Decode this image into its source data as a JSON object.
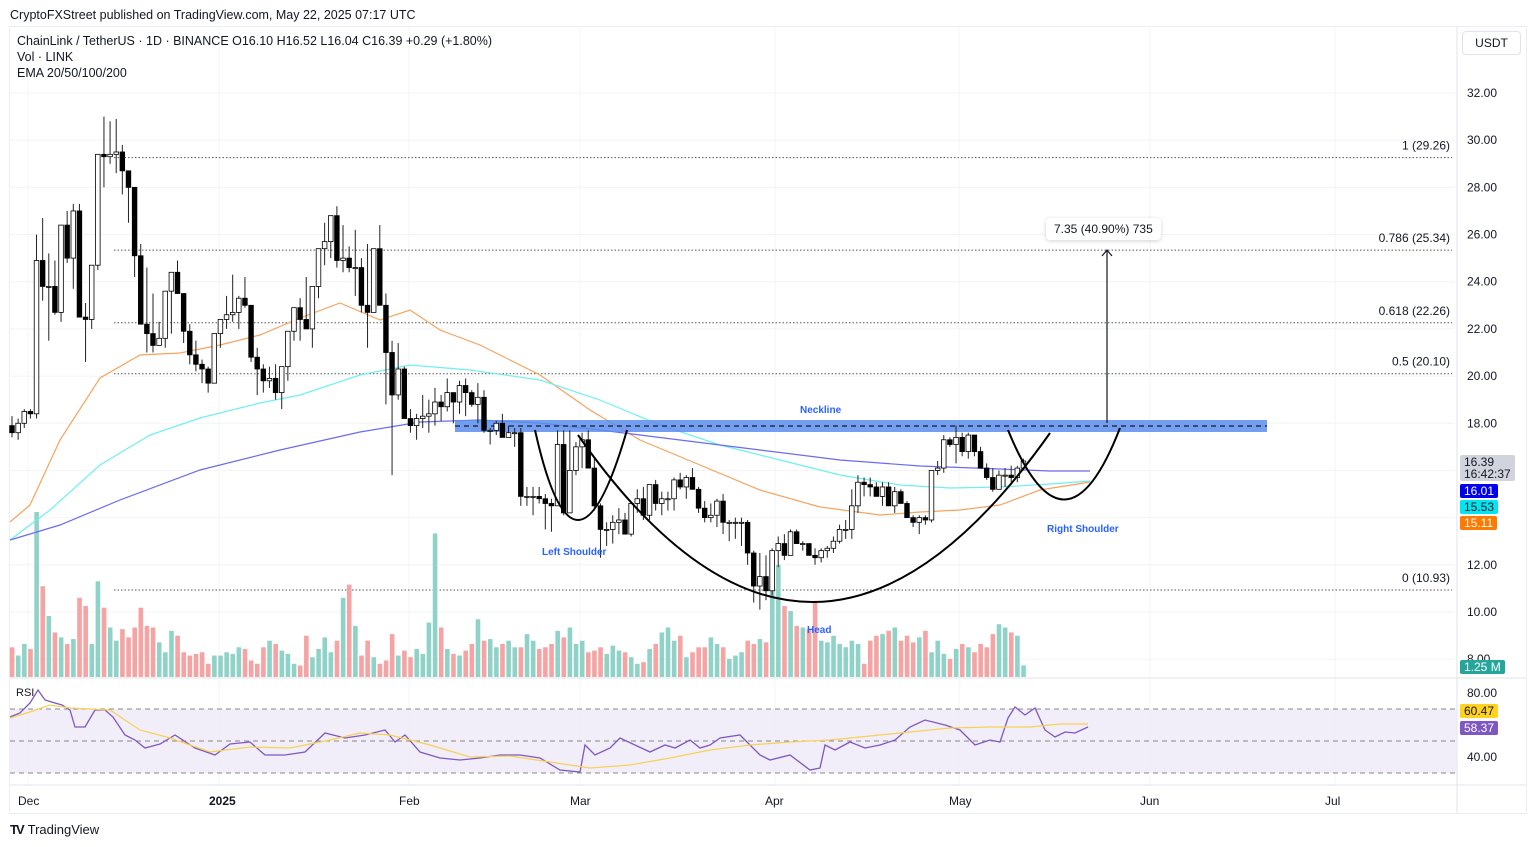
{
  "publisher_line": "CryptoFXStreet published on TradingView.com, May 22, 2025 07:17 UTC",
  "legend": {
    "symbol_line": "ChainLink / TetherUS · 1D · BINANCE  O16.10  H16.52  L16.04  C16.39  +0.29 (+1.80%)",
    "volume_line": "Vol · LINK",
    "ema_line": "EMA 20/50/100/200"
  },
  "currency_unit": "USDT",
  "price_axis_ticks": [
    "32.00",
    "30.00",
    "28.00",
    "26.00",
    "24.00",
    "22.00",
    "20.00",
    "18.00",
    "12.00",
    "10.00",
    "8.00"
  ],
  "rsi_axis_ticks": [
    "80.00",
    "40.00"
  ],
  "time_axis_ticks": [
    "Dec",
    "2025",
    "Feb",
    "Mar",
    "Apr",
    "May",
    "Jun",
    "Jul"
  ],
  "price_badges": {
    "last_price": "16.39",
    "countdown": "16:42:37",
    "ema_blue": "16.01",
    "ema_cyan": "15.53",
    "ema_orange": "15.11",
    "volume": "1.25 M",
    "rsi_ma": "60.47",
    "rsi": "58.37"
  },
  "fib_levels": [
    {
      "label": "1 (29.26)",
      "price": 29.26
    },
    {
      "label": "0.786 (25.34)",
      "price": 25.34
    },
    {
      "label": "0.618 (22.26)",
      "price": 22.26
    },
    {
      "label": "0.5 (20.10)",
      "price": 20.1
    },
    {
      "label": "0 (10.93)",
      "price": 10.93
    }
  ],
  "measure_tooltip": "7.35 (40.90%) 735",
  "annotations": {
    "neckline": "Neckline",
    "left_shoulder": "Left Shoulder",
    "head": "Head",
    "right_shoulder": "Right Shoulder",
    "pane_rsi": "RSI"
  },
  "footer_brand": "TradingView",
  "colors": {
    "up_volume": "#8fd3c8",
    "down_volume": "#f5a3a3",
    "ema20": "#f7a35c",
    "ema50": "#6ef0f0",
    "ema100": "#6b6bf0",
    "ema200": "#3a3af5",
    "neckline_band": "#5b8def",
    "rsi_line": "#7e57c2",
    "rsi_ma": "#f7d154",
    "annotation_text": "#2962ff"
  },
  "chart_data": {
    "type": "candlestick",
    "title": "ChainLink / TetherUS · 1D · BINANCE",
    "xlabel": "",
    "ylabel": "USDT",
    "ylim": [
      7.5,
      33.5
    ],
    "x_ticks": [
      "Dec",
      "2025",
      "Feb",
      "Mar",
      "Apr",
      "May",
      "Jun",
      "Jul"
    ],
    "last_ohlc": {
      "open": 16.1,
      "high": 16.52,
      "low": 16.04,
      "close": 16.39,
      "change": 0.29,
      "change_pct": 1.8
    },
    "ema_last": {
      "ema_a": 16.01,
      "ema_b": 15.53,
      "ema_c": 15.11
    },
    "pattern": "Inverse head and shoulders",
    "neckline_price": 17.85,
    "target_move": {
      "points": 7.35,
      "pct": 40.9,
      "ticks": 735,
      "target_price": 25.34
    },
    "fibonacci": {
      "1": 29.26,
      "0.786": 25.34,
      "0.618": 22.26,
      "0.5": 20.1,
      "0": 10.93
    },
    "candles_ohlc": [
      [
        17.9,
        18.3,
        17.4,
        17.6
      ],
      [
        17.6,
        18.2,
        17.3,
        18.0
      ],
      [
        18.0,
        18.6,
        17.8,
        18.5
      ],
      [
        18.5,
        18.6,
        18.2,
        18.4
      ],
      [
        18.4,
        26.0,
        18.2,
        24.9
      ],
      [
        24.9,
        26.7,
        23.2,
        23.8
      ],
      [
        23.8,
        25.2,
        21.5,
        23.8
      ],
      [
        23.8,
        24.9,
        22.6,
        22.7
      ],
      [
        22.7,
        26.2,
        22.3,
        26.4
      ],
      [
        26.4,
        27.0,
        24.8,
        25.0
      ],
      [
        25.0,
        27.3,
        23.7,
        27.0
      ],
      [
        27.0,
        27.3,
        22.6,
        22.5
      ],
      [
        22.5,
        23.1,
        20.6,
        22.4
      ],
      [
        22.4,
        24.3,
        22.0,
        24.7
      ],
      [
        24.7,
        26.2,
        24.5,
        29.4
      ],
      [
        29.4,
        31.0,
        28.0,
        29.3
      ],
      [
        29.3,
        30.8,
        29.0,
        29.4
      ],
      [
        29.4,
        30.9,
        28.6,
        29.5
      ],
      [
        29.5,
        29.8,
        27.7,
        28.7
      ],
      [
        28.7,
        27.8,
        26.5,
        28.0
      ],
      [
        28.0,
        27.2,
        24.2,
        25.1
      ],
      [
        25.1,
        25.6,
        23.0,
        22.2
      ],
      [
        22.2,
        24.6,
        21.0,
        21.8
      ],
      [
        21.8,
        23.5,
        21.0,
        21.3
      ],
      [
        21.3,
        22.3,
        21.8,
        21.6
      ],
      [
        21.6,
        23.2,
        21.2,
        23.6
      ],
      [
        23.6,
        24.4,
        21.8,
        24.4
      ],
      [
        24.4,
        24.9,
        23.5,
        23.5
      ],
      [
        23.5,
        23.5,
        21.4,
        21.9
      ],
      [
        21.9,
        22.2,
        20.5,
        20.9
      ],
      [
        20.9,
        21.5,
        20.2,
        20.5
      ],
      [
        20.5,
        20.7,
        19.7,
        20.3
      ],
      [
        20.3,
        20.4,
        19.3,
        19.7
      ],
      [
        19.7,
        21.8,
        20.1,
        21.8
      ],
      [
        21.8,
        22.3,
        21.2,
        22.4
      ],
      [
        22.4,
        23.4,
        22.0,
        22.6
      ],
      [
        22.6,
        24.3,
        22.3,
        22.7
      ],
      [
        22.7,
        23.4,
        22.0,
        23.3
      ],
      [
        23.3,
        24.2,
        22.9,
        23.0
      ],
      [
        23.0,
        23.0,
        20.6,
        20.8
      ],
      [
        20.8,
        21.2,
        19.2,
        20.3
      ],
      [
        20.3,
        20.5,
        19.3,
        19.8
      ],
      [
        19.8,
        20.4,
        19.5,
        19.9
      ],
      [
        19.9,
        20.5,
        19.0,
        19.3
      ],
      [
        19.3,
        20.0,
        18.6,
        20.4
      ],
      [
        20.4,
        21.5,
        19.8,
        21.9
      ],
      [
        21.9,
        22.9,
        21.5,
        22.9
      ],
      [
        22.9,
        23.3,
        21.5,
        22.4
      ],
      [
        22.4,
        24.2,
        22.0,
        22.0
      ],
      [
        22.0,
        23.6,
        21.2,
        23.8
      ],
      [
        23.8,
        24.8,
        23.3,
        25.4
      ],
      [
        25.4,
        26.5,
        24.7,
        25.7
      ],
      [
        25.7,
        26.8,
        25.0,
        26.8
      ],
      [
        26.8,
        27.2,
        24.6,
        24.9
      ],
      [
        24.9,
        26.4,
        24.4,
        25.0
      ],
      [
        25.0,
        25.5,
        24.4,
        24.6
      ],
      [
        24.6,
        26.2,
        23.4,
        24.6
      ],
      [
        24.6,
        25.0,
        22.7,
        23.0
      ],
      [
        23.0,
        25.6,
        21.2,
        22.7
      ],
      [
        22.7,
        25.2,
        23.7,
        25.4
      ],
      [
        25.4,
        26.4,
        24.9,
        23.0
      ],
      [
        23.0,
        23.5,
        18.8,
        21.0
      ],
      [
        21.0,
        21.5,
        15.8,
        19.2
      ],
      [
        19.2,
        21.4,
        19.0,
        20.3
      ],
      [
        20.3,
        20.4,
        18.3,
        18.2
      ],
      [
        18.2,
        18.6,
        17.6,
        17.9
      ],
      [
        17.9,
        18.4,
        17.3,
        18.2
      ],
      [
        18.2,
        19.2,
        17.8,
        18.3
      ],
      [
        18.3,
        19.0,
        17.6,
        18.4
      ],
      [
        18.4,
        19.5,
        17.9,
        18.9
      ],
      [
        18.9,
        19.2,
        18.1,
        18.7
      ],
      [
        18.7,
        19.9,
        18.5,
        19.3
      ],
      [
        19.3,
        19.2,
        18.0,
        18.9
      ],
      [
        18.9,
        19.8,
        18.4,
        19.6
      ],
      [
        19.6,
        19.9,
        18.3,
        19.3
      ],
      [
        19.3,
        19.4,
        18.7,
        18.8
      ],
      [
        18.8,
        19.7,
        18.0,
        19.1
      ],
      [
        19.1,
        19.4,
        17.6,
        17.7
      ],
      [
        17.7,
        17.8,
        17.1,
        17.7
      ],
      [
        17.7,
        18.1,
        17.5,
        18.0
      ],
      [
        18.0,
        18.4,
        17.5,
        17.4
      ],
      [
        17.4,
        17.9,
        17.5,
        17.6
      ],
      [
        17.6,
        17.8,
        17.0,
        17.6
      ],
      [
        17.6,
        17.8,
        14.5,
        14.9
      ],
      [
        14.9,
        15.3,
        14.5,
        14.9
      ],
      [
        14.9,
        15.3,
        14.1,
        14.9
      ],
      [
        14.9,
        15.3,
        14.6,
        14.8
      ],
      [
        14.8,
        15.0,
        13.5,
        14.6
      ],
      [
        14.6,
        14.8,
        13.4,
        14.5
      ],
      [
        14.5,
        17.7,
        14.6,
        17.1
      ],
      [
        17.1,
        17.7,
        14.1,
        14.2
      ],
      [
        14.2,
        17.7,
        14.4,
        16.0
      ],
      [
        16.0,
        17.2,
        15.8,
        17.0
      ],
      [
        17.0,
        17.6,
        16.1,
        17.3
      ],
      [
        17.3,
        17.7,
        16.7,
        16.1
      ],
      [
        16.1,
        16.5,
        14.3,
        14.5
      ],
      [
        14.5,
        14.6,
        12.3,
        13.5
      ],
      [
        13.5,
        13.8,
        12.8,
        13.5
      ],
      [
        13.5,
        14.1,
        12.9,
        13.8
      ],
      [
        13.8,
        14.4,
        13.3,
        13.9
      ],
      [
        13.9,
        14.2,
        13.4,
        13.3
      ],
      [
        13.3,
        14.1,
        13.2,
        14.6
      ],
      [
        14.6,
        15.2,
        14.2,
        14.8
      ],
      [
        14.8,
        15.3,
        13.9,
        14.1
      ],
      [
        14.1,
        15.0,
        13.9,
        15.4
      ],
      [
        15.4,
        15.6,
        14.3,
        14.6
      ],
      [
        14.6,
        15.1,
        14.1,
        14.8
      ],
      [
        14.8,
        15.1,
        14.3,
        14.8
      ],
      [
        14.8,
        15.7,
        14.3,
        15.6
      ],
      [
        15.6,
        15.9,
        15.2,
        15.3
      ],
      [
        15.3,
        15.8,
        14.8,
        15.7
      ],
      [
        15.7,
        16.1,
        15.4,
        15.2
      ],
      [
        15.2,
        15.3,
        14.2,
        14.4
      ],
      [
        14.4,
        14.7,
        13.8,
        14.0
      ],
      [
        14.0,
        14.6,
        13.8,
        14.1
      ],
      [
        14.1,
        14.8,
        13.6,
        14.7
      ],
      [
        14.7,
        15.0,
        13.3,
        13.8
      ],
      [
        13.8,
        13.9,
        13.0,
        13.8
      ],
      [
        13.8,
        14.0,
        13.1,
        13.8
      ],
      [
        13.8,
        14.0,
        12.8,
        13.8
      ],
      [
        13.8,
        13.9,
        12.0,
        12.5
      ],
      [
        12.5,
        12.6,
        10.4,
        11.1
      ],
      [
        11.1,
        12.5,
        10.1,
        11.5
      ],
      [
        11.5,
        12.4,
        10.5,
        10.9
      ],
      [
        10.9,
        12.7,
        10.7,
        12.6
      ],
      [
        12.6,
        13.2,
        11.9,
        12.9
      ],
      [
        12.9,
        13.3,
        12.2,
        12.4
      ],
      [
        12.4,
        13.5,
        12.8,
        13.4
      ],
      [
        13.4,
        13.5,
        12.9,
        12.9
      ],
      [
        12.9,
        13.0,
        12.6,
        12.9
      ],
      [
        12.9,
        12.9,
        12.4,
        12.4
      ],
      [
        12.4,
        12.7,
        12.0,
        12.3
      ],
      [
        12.3,
        12.7,
        12.1,
        12.6
      ],
      [
        12.6,
        12.8,
        12.3,
        12.7
      ],
      [
        12.7,
        13.2,
        12.5,
        13.0
      ],
      [
        13.0,
        13.7,
        12.9,
        13.5
      ],
      [
        13.5,
        13.9,
        13.1,
        13.5
      ],
      [
        13.5,
        15.2,
        13.1,
        14.5
      ],
      [
        14.5,
        15.8,
        14.2,
        15.5
      ],
      [
        15.5,
        15.7,
        14.9,
        15.4
      ],
      [
        15.4,
        15.7,
        14.9,
        15.3
      ],
      [
        15.3,
        15.5,
        14.9,
        14.9
      ],
      [
        14.9,
        15.5,
        14.5,
        15.3
      ],
      [
        15.3,
        15.5,
        14.5,
        14.5
      ],
      [
        14.5,
        15.3,
        14.2,
        15.1
      ],
      [
        15.1,
        15.2,
        14.7,
        14.6
      ],
      [
        14.6,
        14.7,
        14.0,
        14.0
      ],
      [
        14.0,
        14.1,
        13.6,
        13.8
      ],
      [
        13.8,
        14.1,
        13.3,
        14.0
      ],
      [
        14.0,
        14.1,
        13.7,
        13.9
      ],
      [
        13.9,
        16.0,
        13.8,
        16.0
      ],
      [
        16.0,
        16.4,
        15.8,
        16.1
      ],
      [
        16.1,
        17.5,
        15.9,
        17.3
      ],
      [
        17.3,
        17.4,
        17.0,
        17.1
      ],
      [
        17.1,
        17.9,
        16.3,
        17.4
      ],
      [
        17.4,
        17.6,
        16.6,
        16.8
      ],
      [
        16.8,
        17.6,
        16.5,
        17.5
      ],
      [
        17.5,
        17.5,
        16.6,
        16.8
      ],
      [
        16.8,
        17.0,
        16.4,
        16.1
      ],
      [
        16.1,
        16.3,
        15.6,
        15.7
      ],
      [
        15.7,
        16.1,
        15.1,
        15.2
      ],
      [
        15.2,
        16.0,
        15.2,
        15.8
      ],
      [
        15.8,
        16.1,
        15.3,
        15.8
      ],
      [
        15.8,
        16.2,
        15.5,
        15.7
      ],
      [
        15.7,
        16.2,
        15.5,
        16.1
      ],
      [
        16.1,
        16.5,
        16.0,
        16.4
      ]
    ],
    "volume_bars_rel": [
      0.18,
      0.13,
      0.2,
      0.17,
      1.0,
      0.55,
      0.37,
      0.27,
      0.24,
      0.2,
      0.23,
      0.48,
      0.43,
      0.2,
      0.58,
      0.42,
      0.3,
      0.22,
      0.29,
      0.24,
      0.3,
      0.42,
      0.31,
      0.3,
      0.21,
      0.15,
      0.28,
      0.25,
      0.15,
      0.13,
      0.14,
      0.15,
      0.08,
      0.13,
      0.13,
      0.15,
      0.14,
      0.18,
      0.17,
      0.1,
      0.08,
      0.18,
      0.22,
      0.2,
      0.16,
      0.14,
      0.08,
      0.07,
      0.25,
      0.12,
      0.17,
      0.24,
      0.15,
      0.22,
      0.48,
      0.56,
      0.31,
      0.13,
      0.22,
      0.12,
      0.08,
      0.1,
      0.26,
      0.13,
      0.16,
      0.12,
      0.17,
      0.14,
      0.33,
      0.87,
      0.3,
      0.17,
      0.14,
      0.13,
      0.16,
      0.2,
      0.35,
      0.22,
      0.23,
      0.18,
      0.2,
      0.22,
      0.18,
      0.18,
      0.26,
      0.22,
      0.17,
      0.18,
      0.2,
      0.28,
      0.24,
      0.3,
      0.2,
      0.22,
      0.15,
      0.16,
      0.18,
      0.14,
      0.19,
      0.16,
      0.15,
      0.12,
      0.08,
      0.09,
      0.17,
      0.2,
      0.27,
      0.3,
      0.22,
      0.25,
      0.12,
      0.15,
      0.18,
      0.18,
      0.24,
      0.2,
      0.18,
      0.11,
      0.13,
      0.15,
      0.22,
      0.2,
      0.23,
      0.21,
      0.62,
      0.68,
      0.43,
      0.4,
      0.31,
      0.3,
      0.29,
      0.45,
      0.22,
      0.21,
      0.25,
      0.2,
      0.18,
      0.22,
      0.2,
      0.08,
      0.22,
      0.25,
      0.26,
      0.28,
      0.3,
      0.22,
      0.25,
      0.21,
      0.24,
      0.28,
      0.15,
      0.22,
      0.14,
      0.11,
      0.17,
      0.2,
      0.18,
      0.15,
      0.2,
      0.18,
      0.26,
      0.32,
      0.3,
      0.27,
      0.25,
      0.07
    ],
    "rsi_last": 58.37,
    "rsi_ma_last": 60.47,
    "rsi_levels": [
      70,
      50,
      30
    ]
  }
}
